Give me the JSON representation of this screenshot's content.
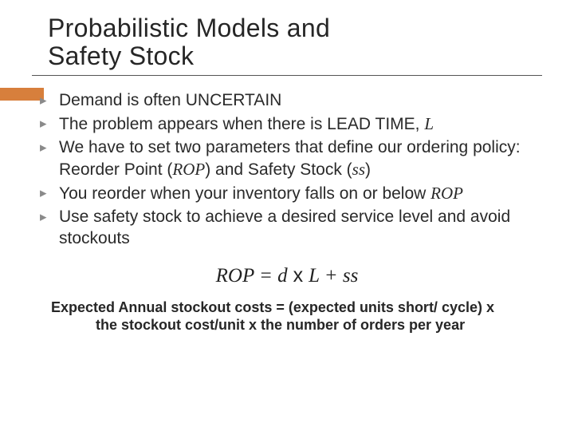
{
  "title_line1": "Probabilistic Models and",
  "title_line2": "Safety Stock",
  "accent_color": "#d77f3c",
  "bullets": [
    {
      "pre": "Demand is often UNCERTAIN",
      "var": "",
      "post": ""
    },
    {
      "pre": "The problem appears when there is LEAD TIME, ",
      "var": "L",
      "post": ""
    },
    {
      "pre": "We have to set two parameters that define our ordering policy: Reorder Point (",
      "var": "ROP",
      "post": ") and Safety Stock (",
      "var2": "ss",
      "post2": ")"
    },
    {
      "pre": "You reorder when your inventory falls on or below ",
      "var": "ROP",
      "post": ""
    },
    {
      "pre": "Use safety stock to achieve a desired service level and avoid stockouts",
      "var": "",
      "post": ""
    }
  ],
  "formula": {
    "lhs": "ROP",
    "eq": " = ",
    "d": "d",
    "x": " x ",
    "L": "L",
    "plus": " + ",
    "ss": "ss"
  },
  "footer_line1": "Expected Annual stockout costs = (expected units short/ cycle) x",
  "footer_line2": "the stockout cost/unit x the number of orders per year"
}
